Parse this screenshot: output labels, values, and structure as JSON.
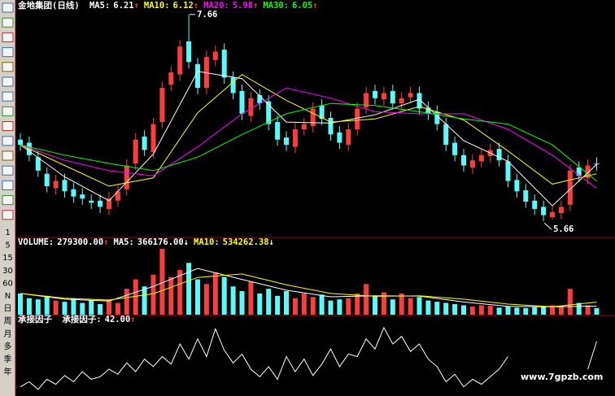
{
  "chart_data": [
    {
      "type": "candlestick",
      "title": "金地集团(日线)",
      "ylim": [
        5.52,
        7.8
      ],
      "up_color": "#ff3c3c",
      "down_color": "#54fcfc",
      "open": [
        6.45,
        6.42,
        6.28,
        6.12,
        5.98,
        6.06,
        5.97,
        5.92,
        5.86,
        5.86,
        5.78,
        5.86,
        5.97,
        6.22,
        6.48,
        6.33,
        6.62,
        6.98,
        7.08,
        7.4,
        7.18,
        6.95,
        7.22,
        7.32,
        7.05,
        6.92,
        6.68,
        6.88,
        6.82,
        6.62,
        6.47,
        6.38,
        6.55,
        6.58,
        6.78,
        6.66,
        6.52,
        6.4,
        6.55,
        6.76,
        6.92,
        6.84,
        6.92,
        6.8,
        6.86,
        6.9,
        6.76,
        6.72,
        6.6,
        6.42,
        6.3,
        6.18,
        6.24,
        6.29,
        6.36,
        6.24,
        6.06,
        5.96,
        5.86,
        5.8,
        5.7,
        5.74,
        5.82,
        6.18,
        6.08,
        6.22
      ],
      "high": [
        6.51,
        6.48,
        6.34,
        6.18,
        6.11,
        6.12,
        6.03,
        5.98,
        5.92,
        5.92,
        5.94,
        6.01,
        6.26,
        6.51,
        6.54,
        6.66,
        7.01,
        7.16,
        7.41,
        7.66,
        7.24,
        7.31,
        7.36,
        7.38,
        7.11,
        6.98,
        6.91,
        6.94,
        6.88,
        6.68,
        6.53,
        6.61,
        6.66,
        6.81,
        6.84,
        6.72,
        6.58,
        6.61,
        6.81,
        6.96,
        6.98,
        6.96,
        6.98,
        6.91,
        6.96,
        6.96,
        6.82,
        6.78,
        6.66,
        6.48,
        6.36,
        6.31,
        6.36,
        6.41,
        6.42,
        6.3,
        6.12,
        6.02,
        5.92,
        5.86,
        5.81,
        5.86,
        6.21,
        6.24,
        6.26,
        6.28
      ],
      "low": [
        6.34,
        6.24,
        6.09,
        5.94,
        5.92,
        5.89,
        5.84,
        5.82,
        5.78,
        5.74,
        5.72,
        5.8,
        5.91,
        6.16,
        6.29,
        6.27,
        6.56,
        6.92,
        7.02,
        7.14,
        6.89,
        6.89,
        7.16,
        6.99,
        6.84,
        6.64,
        6.62,
        6.74,
        6.54,
        6.39,
        6.34,
        6.32,
        6.49,
        6.52,
        6.59,
        6.44,
        6.36,
        6.34,
        6.49,
        6.7,
        6.79,
        6.78,
        6.74,
        6.74,
        6.8,
        6.69,
        6.64,
        6.54,
        6.34,
        6.24,
        6.14,
        6.12,
        6.18,
        6.23,
        6.19,
        5.99,
        5.89,
        5.79,
        5.72,
        5.66,
        5.68,
        5.68,
        5.76,
        6.04,
        6.02,
        6.15
      ],
      "close": [
        6.4,
        6.3,
        6.15,
        6.0,
        6.05,
        5.95,
        5.9,
        5.88,
        5.84,
        5.8,
        5.88,
        5.95,
        6.2,
        6.45,
        6.35,
        6.6,
        6.95,
        7.1,
        7.35,
        7.2,
        6.95,
        7.25,
        7.3,
        7.05,
        6.9,
        6.7,
        6.85,
        6.8,
        6.6,
        6.45,
        6.4,
        6.55,
        6.6,
        6.75,
        6.65,
        6.5,
        6.42,
        6.55,
        6.75,
        6.9,
        6.85,
        6.9,
        6.8,
        6.85,
        6.9,
        6.75,
        6.7,
        6.6,
        6.4,
        6.3,
        6.2,
        6.25,
        6.3,
        6.35,
        6.25,
        6.05,
        5.95,
        5.85,
        5.78,
        5.72,
        5.75,
        5.8,
        6.15,
        6.1,
        6.2,
        6.21
      ],
      "series": [
        {
          "name": "MA5:",
          "color": "#ffffff",
          "arrow": "↑",
          "arrow_color": "#ff3c3c",
          "x": [
            0,
            5,
            10,
            15,
            20,
            25,
            30,
            35,
            40,
            45,
            50,
            55,
            60,
            65
          ],
          "values": [
            6.4,
            6.09,
            5.86,
            6.31,
            7.11,
            7.04,
            6.62,
            6.61,
            6.69,
            6.84,
            6.44,
            6.24,
            5.81,
            6.21
          ]
        },
        {
          "name": "MA10:",
          "color": "#ffff00",
          "arrow": "↑",
          "arrow_color": "#ff3c3c",
          "x": [
            0,
            5,
            10,
            15,
            20,
            25,
            30,
            35,
            40,
            45,
            50,
            55,
            60,
            65
          ],
          "values": [
            6.4,
            6.2,
            6.0,
            6.08,
            6.71,
            7.08,
            6.83,
            6.62,
            6.65,
            6.77,
            6.64,
            6.34,
            6.02,
            6.12
          ]
        },
        {
          "name": "MA20:",
          "color": "#ff00ff",
          "arrow": "↑",
          "arrow_color": "#ff3c3c",
          "x": [
            0,
            5,
            10,
            15,
            20,
            25,
            30,
            35,
            40,
            45,
            50,
            55,
            60,
            65
          ],
          "values": [
            6.4,
            6.25,
            6.15,
            6.1,
            6.38,
            6.7,
            6.95,
            6.85,
            6.72,
            6.7,
            6.7,
            6.55,
            6.3,
            5.98
          ]
        },
        {
          "name": "MA30:",
          "color": "#00ff00",
          "arrow": "↑",
          "arrow_color": "#ff3c3c",
          "x": [
            0,
            5,
            10,
            15,
            20,
            25,
            30,
            35,
            40,
            45,
            50,
            55,
            60,
            65
          ],
          "values": [
            6.4,
            6.3,
            6.22,
            6.15,
            6.28,
            6.5,
            6.7,
            6.8,
            6.78,
            6.72,
            6.65,
            6.6,
            6.4,
            6.05
          ]
        }
      ],
      "annotations": [
        7.66,
        5.66
      ]
    },
    {
      "type": "bar",
      "ylim": [
        0,
        2900000
      ],
      "series": [
        {
          "name": "VOLUME:",
          "up_color": "#ff3c3c",
          "down_color": "#54fcfc",
          "arrow": "↑",
          "arrow_color": "#ff3c3c",
          "current": {
            "value": 279300,
            "label": "279300.00"
          },
          "values": [
            900000,
            700000,
            650000,
            800000,
            600000,
            550000,
            700000,
            500000,
            600000,
            450000,
            650000,
            500000,
            1100000,
            1500000,
            1200000,
            1700000,
            2800000,
            1600000,
            1900000,
            2200000,
            1500000,
            1300000,
            1800000,
            1600000,
            1200000,
            1000000,
            1400000,
            900000,
            1100000,
            800000,
            1000000,
            700000,
            900000,
            750000,
            850000,
            600000,
            650000,
            700000,
            900000,
            1300000,
            800000,
            950000,
            650000,
            900000,
            700000,
            750000,
            600000,
            550000,
            500000,
            450000,
            400000,
            350000,
            400000,
            380000,
            300000,
            350000,
            300000,
            280000,
            320000,
            350000,
            400000,
            380000,
            1100000,
            500000,
            400000,
            279300
          ]
        },
        {
          "name": "MA5:",
          "color": "#ffffff",
          "arrow": "↓",
          "arrow_color": "#ffffff",
          "current": {
            "value": 366176,
            "label": "366176.00"
          },
          "x": [
            0,
            5,
            10,
            15,
            20,
            25,
            30,
            35,
            40,
            45,
            50,
            55,
            60,
            65
          ],
          "values": [
            900000,
            660000,
            580000,
            1200000,
            1960000,
            1500000,
            1040000,
            760000,
            800000,
            790000,
            540000,
            356000,
            330000,
            366176
          ]
        },
        {
          "name": "MA10:",
          "color": "#ffff00",
          "arrow": "↓",
          "arrow_color": "#ffffff",
          "current": {
            "value": 534262.38,
            "label": "534262.38"
          },
          "x": [
            0,
            5,
            10,
            15,
            20,
            25,
            30,
            35,
            40,
            45,
            50,
            55,
            60,
            65
          ],
          "values": [
            900000,
            700000,
            620000,
            890000,
            1580000,
            1730000,
            1270000,
            900000,
            780000,
            800000,
            660000,
            450000,
            340000,
            534262.38
          ]
        }
      ]
    },
    {
      "type": "line",
      "title": "承接因子",
      "ylim": [
        0,
        60
      ],
      "series": [
        {
          "name": "承接因子:",
          "color": "#ffffff",
          "arrow": "↑",
          "arrow_color": "#ff3c3c",
          "current": {
            "value": 42,
            "label": "42.00"
          },
          "values": [
            6,
            10,
            4,
            12,
            8,
            15,
            10,
            18,
            12,
            14,
            20,
            16,
            25,
            18,
            28,
            22,
            30,
            24,
            40,
            28,
            44,
            30,
            52,
            35,
            25,
            32,
            20,
            14,
            22,
            12,
            30,
            18,
            28,
            15,
            24,
            36,
            22,
            32,
            30,
            44,
            36,
            53,
            40,
            46,
            34,
            40,
            28,
            22,
            10,
            16,
            6,
            12,
            8,
            14,
            20,
            30,
            null,
            null,
            null,
            null,
            null,
            null,
            null,
            null,
            20,
            42
          ]
        }
      ]
    }
  ],
  "period_buttons": [
    "1",
    "5",
    "15",
    "30",
    "60",
    "N",
    "日",
    "周",
    "月",
    "多",
    "季",
    "年"
  ],
  "watermark": "www.7gpzb.com"
}
